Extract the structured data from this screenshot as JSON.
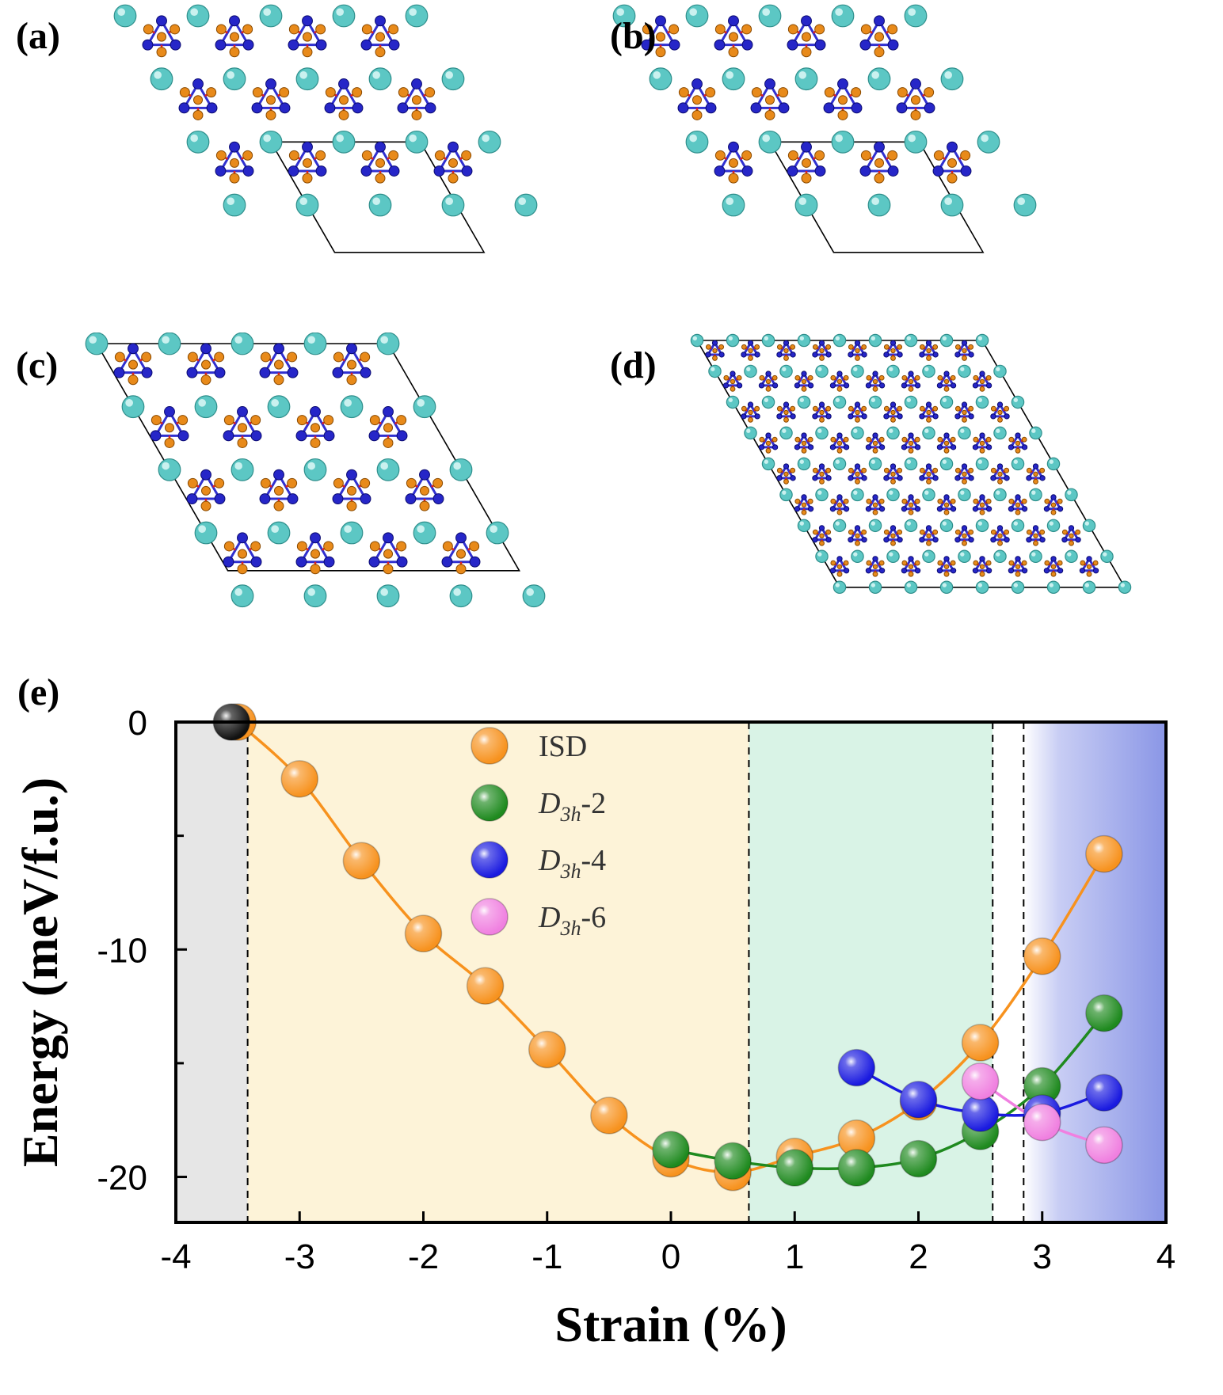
{
  "panels": [
    {
      "id": "a",
      "label": "(a)"
    },
    {
      "id": "b",
      "label": "(b)"
    },
    {
      "id": "c",
      "label": "(c)"
    },
    {
      "id": "d",
      "label": "(d)"
    }
  ],
  "colors": {
    "host": "#5cc7c4",
    "blue_atom": "#2626c8",
    "orange_atom": "#e88a1a",
    "arrow": "#e02020",
    "bond": "#3030d0",
    "isd": "#f7921e",
    "d3h2": "#1f8a1f",
    "d3h4": "#1a1ae0",
    "d3h6": "#f080e0",
    "black": "#111111",
    "region_gray": "#e6e6e6",
    "region_yellow": "#fdf3d8",
    "region_green": "#d9f3e6",
    "region_blue": "#8a96e6"
  },
  "chart_data": {
    "panel_label": "(e)",
    "type": "scatter-line",
    "xlabel": "Strain (%)",
    "ylabel": "Energy (meV/f.u.)",
    "xlim": [
      -4,
      4
    ],
    "ylim": [
      -22,
      0
    ],
    "xticks": [
      -4,
      -3,
      -2,
      -1,
      0,
      1,
      2,
      3,
      4
    ],
    "yticks_labeled": [
      0,
      -10,
      -20
    ],
    "yticks_minor": [
      -5,
      -15
    ],
    "regions": [
      {
        "name": "gray",
        "x": [
          -4,
          -3.42
        ]
      },
      {
        "name": "yellow",
        "x": [
          -3.42,
          0.63
        ]
      },
      {
        "name": "green",
        "x": [
          0.63,
          2.6
        ]
      },
      {
        "name": "white",
        "x": [
          2.6,
          2.85
        ]
      },
      {
        "name": "blue-gradient",
        "x": [
          2.85,
          4
        ]
      }
    ],
    "dividers": [
      -3.42,
      0.63,
      2.6,
      2.85
    ],
    "series": [
      {
        "name": "ISD",
        "label_main": "ISD",
        "label_sub": "",
        "label_suffix": "",
        "color_key": "isd",
        "x": [
          -3.5,
          -3,
          -2.5,
          -2,
          -1.5,
          -1,
          -0.5,
          0,
          0.5,
          1,
          1.5,
          2,
          2.5,
          3,
          3.5
        ],
        "y": [
          0,
          -2.5,
          -6.1,
          -9.3,
          -11.6,
          -14.4,
          -17.3,
          -19.2,
          -19.8,
          -19.1,
          -18.3,
          -16.7,
          -14.1,
          -10.3,
          -5.8
        ]
      },
      {
        "name": "D3h-2",
        "label_main": "D",
        "label_sub": "3h",
        "label_suffix": "-2",
        "color_key": "d3h2",
        "x": [
          0,
          0.5,
          1,
          1.5,
          2,
          2.5,
          3,
          3.5
        ],
        "y": [
          -18.8,
          -19.3,
          -19.6,
          -19.6,
          -19.2,
          -18.0,
          -16.0,
          -12.8
        ]
      },
      {
        "name": "D3h-4",
        "label_main": "D",
        "label_sub": "3h",
        "label_suffix": "-4",
        "color_key": "d3h4",
        "x": [
          1.5,
          2,
          2.5,
          3,
          3.5
        ],
        "y": [
          -15.2,
          -16.6,
          -17.2,
          -17.2,
          -16.3
        ]
      },
      {
        "name": "D3h-6",
        "label_main": "D",
        "label_sub": "3h",
        "label_suffix": "-6",
        "color_key": "d3h6",
        "x": [
          2.5,
          3,
          3.5
        ],
        "y": [
          -15.8,
          -17.6,
          -18.6
        ]
      }
    ],
    "extra_points": [
      {
        "x": -3.55,
        "y": 0,
        "color_key": "black"
      }
    ]
  }
}
